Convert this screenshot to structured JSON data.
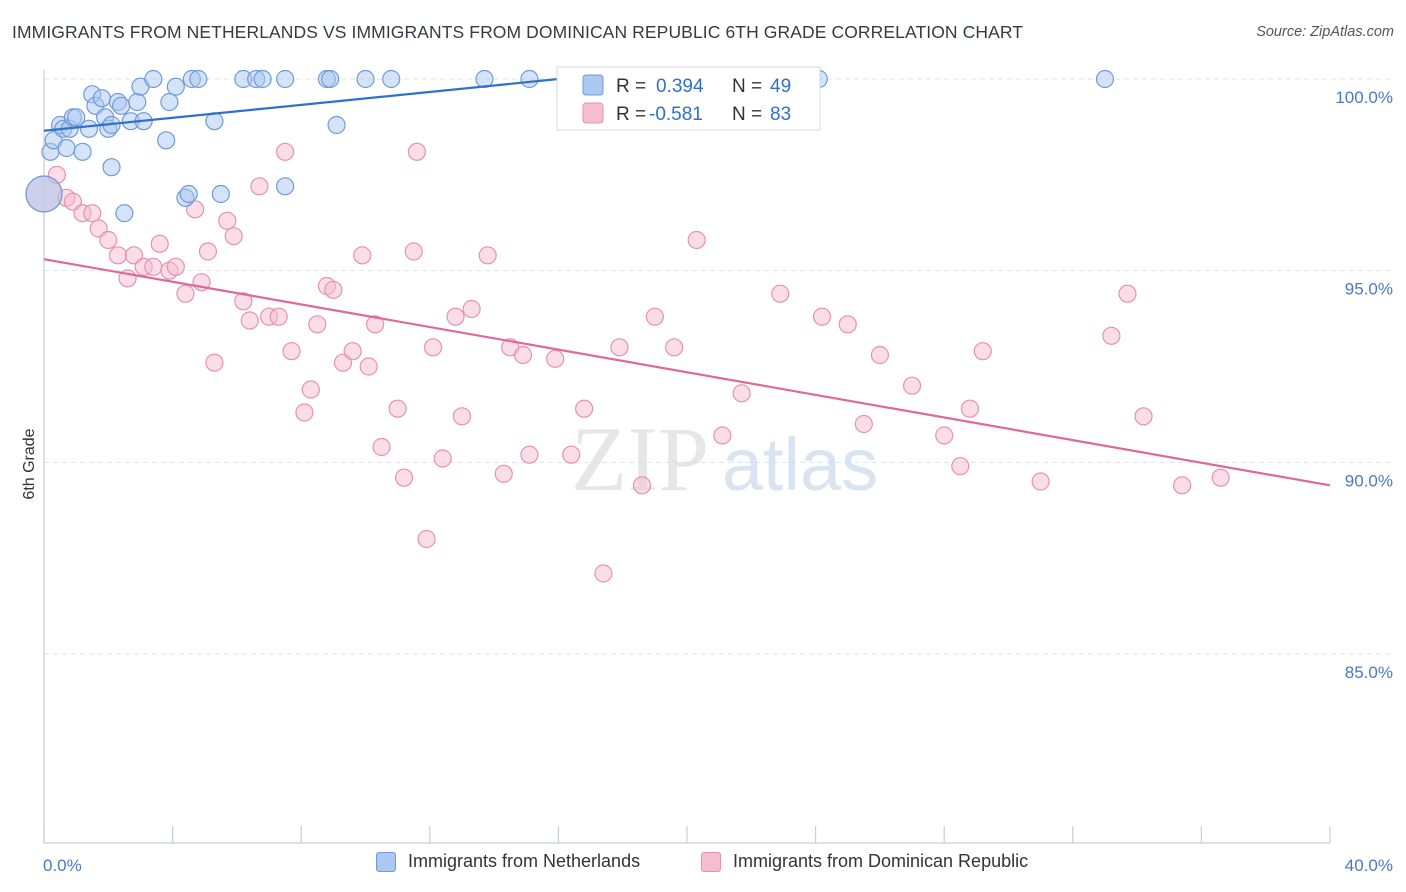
{
  "title": "IMMIGRANTS FROM NETHERLANDS VS IMMIGRANTS FROM DOMINICAN REPUBLIC 6TH GRADE CORRELATION CHART",
  "source": "Source: ZipAtlas.com",
  "watermark": {
    "zip": "ZIP",
    "atlas": "atlas"
  },
  "legend": {
    "r_label": "R =",
    "n_label": "N =",
    "rows": [
      {
        "r": "0.394",
        "n": "49"
      },
      {
        "r": "-0.581",
        "n": "83"
      }
    ]
  },
  "colors": {
    "blue_fill": "#aac8f0",
    "blue_stroke": "#6f9ad8",
    "blue_line": "#2f6fd0",
    "pink_fill": "#f6bcd0",
    "pink_stroke": "#e890b0",
    "pink_line": "#e06896",
    "grid": "#dde3ea",
    "axis_text": "#4a78c8"
  },
  "chart_data": {
    "type": "scatter",
    "title": "IMMIGRANTS FROM NETHERLANDS VS IMMIGRANTS FROM DOMINICAN REPUBLIC 6TH GRADE CORRELATION CHART",
    "xlabel": "",
    "ylabel": "6th Grade",
    "xlim": [
      0,
      40
    ],
    "ylim": [
      80.5,
      100.8
    ],
    "x_tick_labels": [
      "0.0%",
      "40.0%"
    ],
    "y_ticks": [
      85,
      90,
      95,
      100
    ],
    "y_tick_labels": [
      "85.0%",
      "90.0%",
      "95.0%",
      "100.0%"
    ],
    "grid": true,
    "legend_position": "top-center",
    "series": [
      {
        "name": "Immigrants from Netherlands",
        "r": 0.394,
        "n": 49,
        "trend": {
          "x": [
            0.0,
            16.0
          ],
          "y": [
            98.65,
            100.0
          ]
        },
        "points": [
          {
            "x": 0.0,
            "y": 97.0,
            "big": true
          },
          {
            "x": 0.2,
            "y": 98.1
          },
          {
            "x": 0.3,
            "y": 98.4
          },
          {
            "x": 0.5,
            "y": 98.8
          },
          {
            "x": 0.6,
            "y": 98.7
          },
          {
            "x": 0.7,
            "y": 98.2
          },
          {
            "x": 0.8,
            "y": 98.7
          },
          {
            "x": 0.9,
            "y": 99.0
          },
          {
            "x": 1.0,
            "y": 99.0
          },
          {
            "x": 1.2,
            "y": 98.1
          },
          {
            "x": 1.4,
            "y": 98.7
          },
          {
            "x": 1.5,
            "y": 99.6
          },
          {
            "x": 1.6,
            "y": 99.3
          },
          {
            "x": 1.8,
            "y": 99.5
          },
          {
            "x": 1.9,
            "y": 99.0
          },
          {
            "x": 2.0,
            "y": 98.7
          },
          {
            "x": 2.1,
            "y": 98.8
          },
          {
            "x": 2.1,
            "y": 97.7
          },
          {
            "x": 2.3,
            "y": 99.4
          },
          {
            "x": 2.4,
            "y": 99.3
          },
          {
            "x": 2.5,
            "y": 96.5
          },
          {
            "x": 2.7,
            "y": 98.9
          },
          {
            "x": 2.9,
            "y": 99.4
          },
          {
            "x": 3.0,
            "y": 99.8
          },
          {
            "x": 3.1,
            "y": 98.9
          },
          {
            "x": 3.4,
            "y": 100.0
          },
          {
            "x": 3.8,
            "y": 98.4
          },
          {
            "x": 3.9,
            "y": 99.4
          },
          {
            "x": 4.1,
            "y": 99.8
          },
          {
            "x": 4.4,
            "y": 96.9
          },
          {
            "x": 4.5,
            "y": 97.0
          },
          {
            "x": 4.6,
            "y": 100.0
          },
          {
            "x": 4.8,
            "y": 100.0
          },
          {
            "x": 5.3,
            "y": 98.9
          },
          {
            "x": 5.5,
            "y": 97.0
          },
          {
            "x": 6.2,
            "y": 100.0
          },
          {
            "x": 6.6,
            "y": 100.0
          },
          {
            "x": 6.8,
            "y": 100.0
          },
          {
            "x": 7.5,
            "y": 100.0
          },
          {
            "x": 7.5,
            "y": 97.2
          },
          {
            "x": 8.8,
            "y": 100.0
          },
          {
            "x": 8.9,
            "y": 100.0
          },
          {
            "x": 9.1,
            "y": 98.8
          },
          {
            "x": 10.0,
            "y": 100.0
          },
          {
            "x": 10.8,
            "y": 100.0
          },
          {
            "x": 13.7,
            "y": 100.0
          },
          {
            "x": 15.1,
            "y": 100.0
          },
          {
            "x": 24.1,
            "y": 100.0
          },
          {
            "x": 33.0,
            "y": 100.0
          }
        ]
      },
      {
        "name": "Immigrants from Dominican Republic",
        "r": -0.581,
        "n": 83,
        "trend": {
          "x": [
            0.0,
            40.0
          ],
          "y": [
            95.3,
            89.4
          ]
        },
        "points": [
          {
            "x": 0.0,
            "y": 97.0,
            "big": true
          },
          {
            "x": 0.4,
            "y": 97.5
          },
          {
            "x": 0.7,
            "y": 96.9
          },
          {
            "x": 0.9,
            "y": 96.8
          },
          {
            "x": 1.2,
            "y": 96.5
          },
          {
            "x": 1.5,
            "y": 96.5
          },
          {
            "x": 1.7,
            "y": 96.1
          },
          {
            "x": 2.0,
            "y": 95.8
          },
          {
            "x": 2.3,
            "y": 95.4
          },
          {
            "x": 2.6,
            "y": 94.8
          },
          {
            "x": 2.8,
            "y": 95.4
          },
          {
            "x": 3.1,
            "y": 95.1
          },
          {
            "x": 3.4,
            "y": 95.1
          },
          {
            "x": 3.6,
            "y": 95.7
          },
          {
            "x": 3.9,
            "y": 95.0
          },
          {
            "x": 4.1,
            "y": 95.1
          },
          {
            "x": 4.4,
            "y": 94.4
          },
          {
            "x": 4.7,
            "y": 96.6
          },
          {
            "x": 4.9,
            "y": 94.7
          },
          {
            "x": 5.1,
            "y": 95.5
          },
          {
            "x": 5.3,
            "y": 92.6
          },
          {
            "x": 5.7,
            "y": 96.3
          },
          {
            "x": 5.9,
            "y": 95.9
          },
          {
            "x": 6.2,
            "y": 94.2
          },
          {
            "x": 6.4,
            "y": 93.7
          },
          {
            "x": 6.7,
            "y": 97.2
          },
          {
            "x": 7.0,
            "y": 93.8
          },
          {
            "x": 7.3,
            "y": 93.8
          },
          {
            "x": 7.5,
            "y": 98.1
          },
          {
            "x": 7.7,
            "y": 92.9
          },
          {
            "x": 8.1,
            "y": 91.3
          },
          {
            "x": 8.3,
            "y": 91.9
          },
          {
            "x": 8.5,
            "y": 93.6
          },
          {
            "x": 8.8,
            "y": 94.6
          },
          {
            "x": 9.0,
            "y": 94.5
          },
          {
            "x": 9.3,
            "y": 92.6
          },
          {
            "x": 9.6,
            "y": 92.9
          },
          {
            "x": 9.9,
            "y": 95.4
          },
          {
            "x": 10.1,
            "y": 92.5
          },
          {
            "x": 10.3,
            "y": 93.6
          },
          {
            "x": 10.5,
            "y": 90.4
          },
          {
            "x": 11.0,
            "y": 91.4
          },
          {
            "x": 11.2,
            "y": 89.6
          },
          {
            "x": 11.5,
            "y": 95.5
          },
          {
            "x": 11.6,
            "y": 98.1
          },
          {
            "x": 11.9,
            "y": 88.0
          },
          {
            "x": 12.1,
            "y": 93.0
          },
          {
            "x": 12.4,
            "y": 90.1
          },
          {
            "x": 12.8,
            "y": 93.8
          },
          {
            "x": 13.0,
            "y": 91.2
          },
          {
            "x": 13.3,
            "y": 94.0
          },
          {
            "x": 13.8,
            "y": 95.4
          },
          {
            "x": 14.3,
            "y": 89.7
          },
          {
            "x": 14.5,
            "y": 93.0
          },
          {
            "x": 14.9,
            "y": 92.8
          },
          {
            "x": 15.1,
            "y": 90.2
          },
          {
            "x": 15.9,
            "y": 92.7
          },
          {
            "x": 16.4,
            "y": 90.2
          },
          {
            "x": 16.8,
            "y": 91.4
          },
          {
            "x": 17.4,
            "y": 87.1
          },
          {
            "x": 17.9,
            "y": 93.0
          },
          {
            "x": 18.6,
            "y": 89.4
          },
          {
            "x": 19.0,
            "y": 93.8
          },
          {
            "x": 19.6,
            "y": 93.0
          },
          {
            "x": 20.3,
            "y": 95.8
          },
          {
            "x": 21.1,
            "y": 90.7
          },
          {
            "x": 21.7,
            "y": 91.8
          },
          {
            "x": 22.9,
            "y": 94.4
          },
          {
            "x": 24.2,
            "y": 93.8
          },
          {
            "x": 25.0,
            "y": 93.6
          },
          {
            "x": 25.5,
            "y": 91.0
          },
          {
            "x": 26.0,
            "y": 92.8
          },
          {
            "x": 27.0,
            "y": 92.0
          },
          {
            "x": 28.0,
            "y": 90.7
          },
          {
            "x": 28.5,
            "y": 89.9
          },
          {
            "x": 28.8,
            "y": 91.4
          },
          {
            "x": 29.2,
            "y": 92.9
          },
          {
            "x": 31.0,
            "y": 89.5
          },
          {
            "x": 33.2,
            "y": 93.3
          },
          {
            "x": 33.7,
            "y": 94.4
          },
          {
            "x": 34.2,
            "y": 91.2
          },
          {
            "x": 35.4,
            "y": 89.4
          },
          {
            "x": 36.6,
            "y": 89.6
          }
        ]
      }
    ]
  }
}
